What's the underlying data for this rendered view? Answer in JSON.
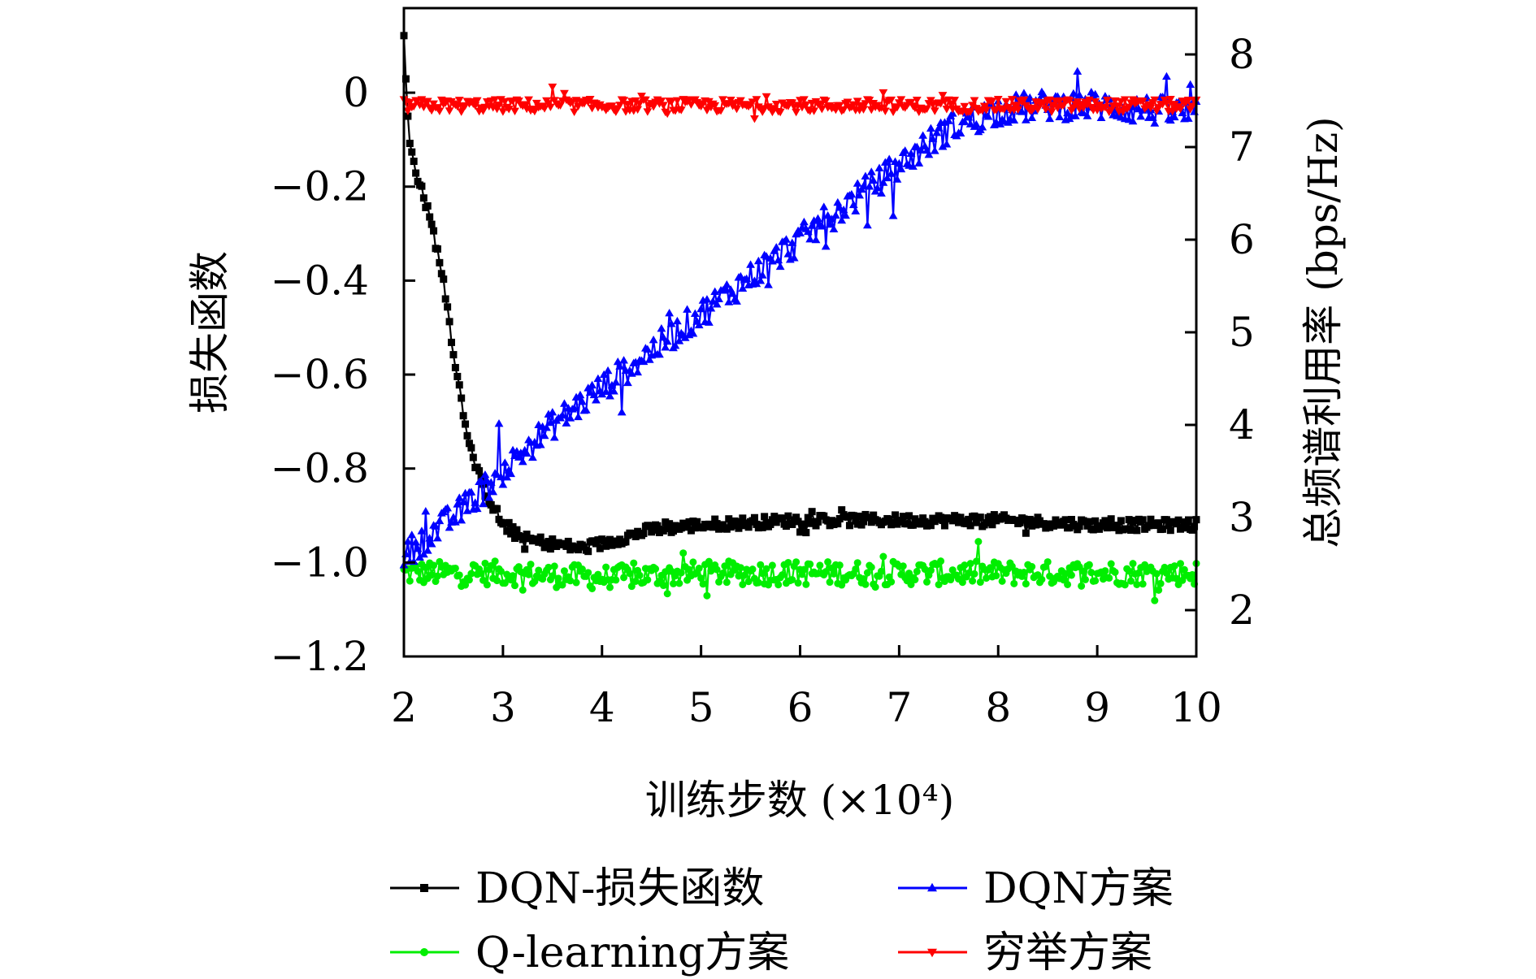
{
  "chart_data": {
    "type": "line",
    "xlabel": "训练步数 (×10⁴)",
    "ylabel_left": "损失函数",
    "ylabel_right": "总频谱利用率 (bps/Hz)",
    "xlim": [
      2,
      10
    ],
    "ylim_left": [
      -1.2,
      0.18
    ],
    "ylim_right": [
      1.5,
      8.5
    ],
    "x_ticks": [
      "2",
      "3",
      "4",
      "5",
      "6",
      "7",
      "8",
      "9",
      "10"
    ],
    "y_left_ticks": [
      "0",
      "−0.2",
      "−0.4",
      "−0.6",
      "−0.8",
      "−1.0",
      "−1.2"
    ],
    "y_right_ticks": [
      "2",
      "3",
      "4",
      "5",
      "6",
      "7",
      "8"
    ],
    "grid": false,
    "legend_position": "bottom",
    "series": [
      {
        "name": "DQN-损失函数",
        "axis": "left",
        "color": "#000000",
        "marker": "square",
        "x": [
          2.0,
          2.05,
          2.1,
          2.2,
          2.3,
          2.4,
          2.5,
          2.6,
          2.7,
          2.8,
          2.9,
          3.0,
          3.2,
          3.5,
          3.8,
          4.0,
          4.5,
          5.0,
          6.0,
          7.0,
          8.0,
          9.0,
          10.0
        ],
        "values": [
          0.12,
          -0.1,
          -0.15,
          -0.22,
          -0.3,
          -0.4,
          -0.55,
          -0.68,
          -0.78,
          -0.84,
          -0.88,
          -0.92,
          -0.95,
          -0.96,
          -0.97,
          -0.96,
          -0.93,
          -0.92,
          -0.91,
          -0.91,
          -0.91,
          -0.92,
          -0.92
        ]
      },
      {
        "name": "DQN方案",
        "axis": "right",
        "color": "#0000ff",
        "marker": "triangle-up",
        "x": [
          2.0,
          2.5,
          3.0,
          3.5,
          4.0,
          4.5,
          5.0,
          5.5,
          6.0,
          6.5,
          7.0,
          7.5,
          8.0,
          8.5,
          9.0,
          9.5,
          10.0
        ],
        "values": [
          2.6,
          3.0,
          3.5,
          4.0,
          4.4,
          4.8,
          5.2,
          5.6,
          6.0,
          6.4,
          6.8,
          7.2,
          7.4,
          7.45,
          7.45,
          7.4,
          7.35
        ]
      },
      {
        "name": "Q-learning方案",
        "axis": "right",
        "color": "#00ee00",
        "marker": "circle",
        "x": [
          2.0,
          3.0,
          4.0,
          5.0,
          6.0,
          7.0,
          8.0,
          9.0,
          10.0
        ],
        "values": [
          2.4,
          2.4,
          2.35,
          2.4,
          2.4,
          2.4,
          2.4,
          2.4,
          2.4
        ]
      },
      {
        "name": "穷举方案",
        "axis": "right",
        "color": "#ff0000",
        "marker": "triangle-down",
        "x": [
          2.0,
          3.0,
          4.0,
          5.0,
          6.0,
          7.0,
          8.0,
          9.0,
          10.0
        ],
        "values": [
          7.45,
          7.45,
          7.45,
          7.45,
          7.45,
          7.45,
          7.45,
          7.45,
          7.45
        ]
      }
    ]
  }
}
